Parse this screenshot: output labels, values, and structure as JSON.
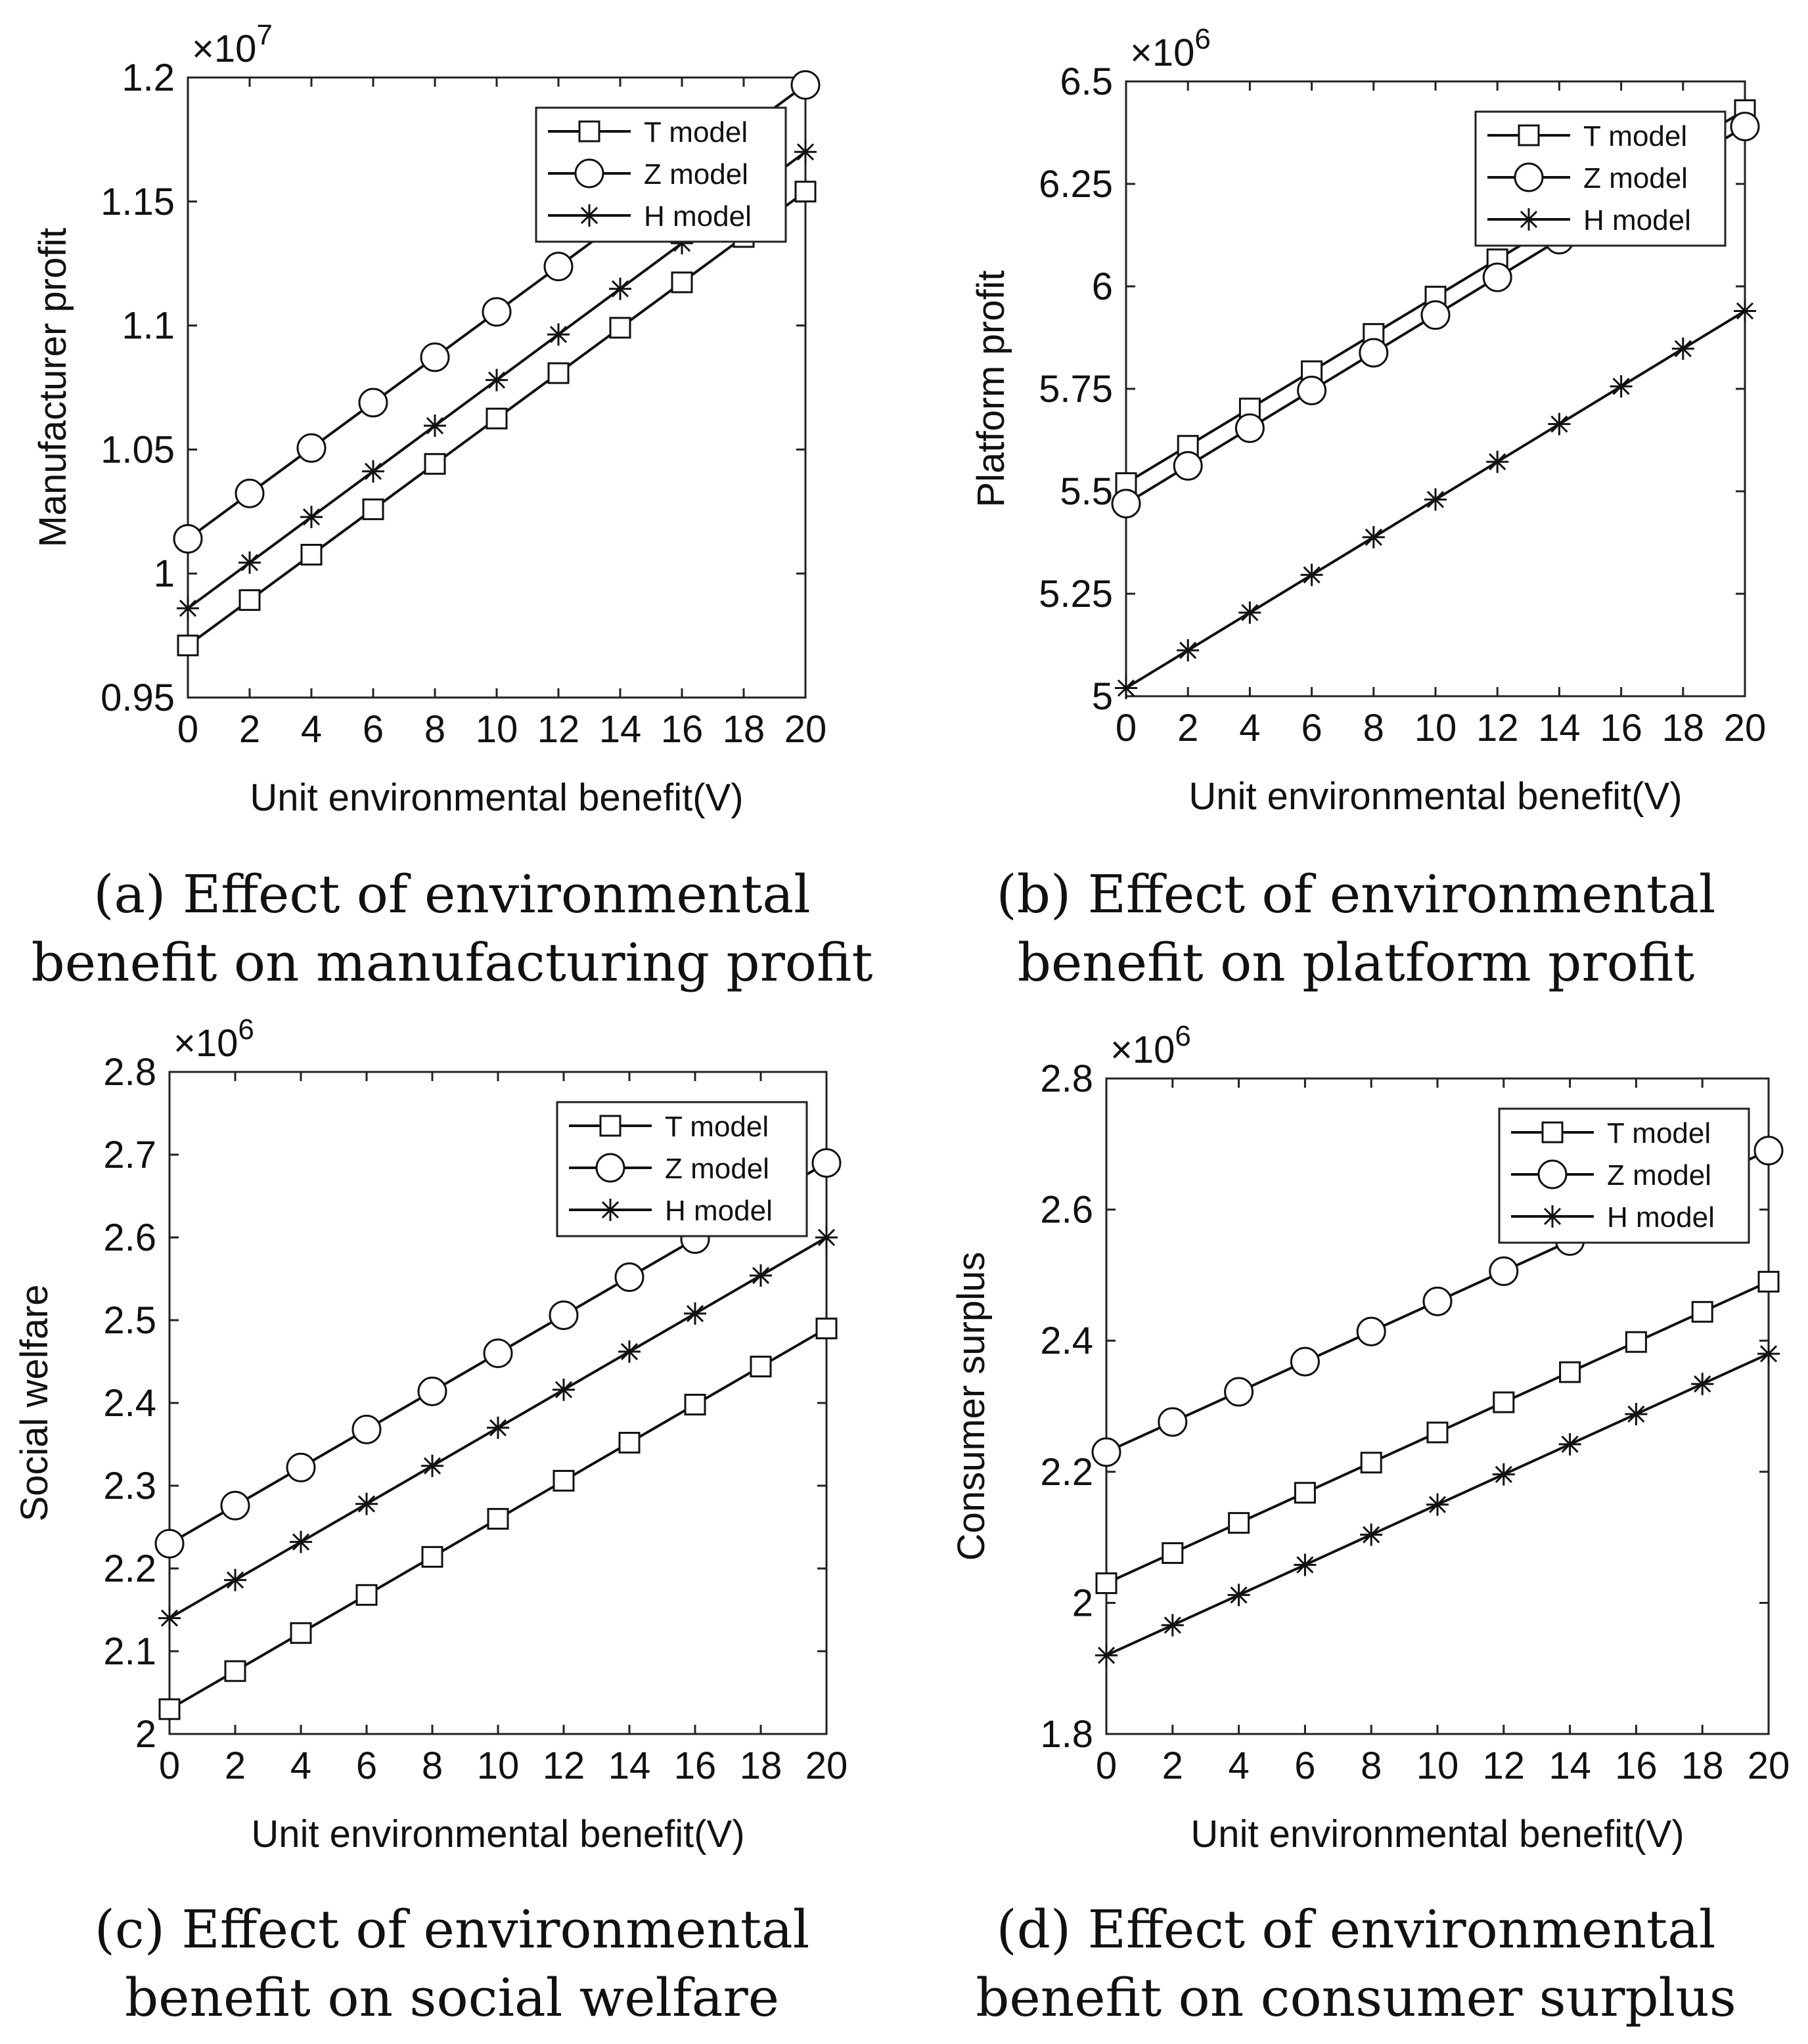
{
  "figure": {
    "captions": [
      {
        "line1": "(a) Effect of environmental",
        "line2": "benefit on manufacturing profit"
      },
      {
        "line1": "(b) Effect of environmental",
        "line2": "benefit on platform profit"
      },
      {
        "line1": "(c) Effect of environmental",
        "line2": "benefit on social welfare"
      },
      {
        "line1": "(d) Effect of environmental",
        "line2": "benefit on consumer surplus"
      }
    ]
  },
  "chart_data": [
    {
      "id": "a",
      "type": "line",
      "xlabel": "Unit environmental benefit(V)",
      "ylabel": "Manufacturer profit",
      "exponent": "×10^7",
      "exponent_base": "×10",
      "exponent_power": "7",
      "xlim": [
        0,
        20
      ],
      "ylim": [
        0.95,
        1.2
      ],
      "xticks": [
        0,
        2,
        4,
        6,
        8,
        10,
        12,
        14,
        16,
        18,
        20
      ],
      "yticks": [
        0.95,
        1,
        1.05,
        1.1,
        1.15,
        1.2
      ],
      "ytick_labels": [
        "0.95",
        "1",
        "1.05",
        "1.1",
        "1.15",
        "1.2"
      ],
      "legend": "top-right",
      "series": [
        {
          "name": "T model",
          "marker": "square",
          "x": [
            0,
            2,
            4,
            6,
            8,
            10,
            12,
            14,
            16,
            18,
            20
          ],
          "values": [
            0.971,
            0.9893,
            1.0076,
            1.0259,
            1.0442,
            1.0625,
            1.0808,
            1.0991,
            1.1174,
            1.1357,
            1.154
          ]
        },
        {
          "name": "Z model",
          "marker": "circle",
          "x": [
            0,
            2,
            4,
            6,
            8,
            10,
            12,
            14,
            16,
            18,
            20
          ],
          "values": [
            1.014,
            1.0323,
            1.0506,
            1.0689,
            1.0872,
            1.1055,
            1.1238,
            1.1421,
            1.1604,
            1.1787,
            1.197
          ]
        },
        {
          "name": "H model",
          "marker": "asterisk",
          "x": [
            0,
            2,
            4,
            6,
            8,
            10,
            12,
            14,
            16,
            18,
            20
          ],
          "values": [
            0.986,
            1.0044,
            1.0228,
            1.0412,
            1.0596,
            1.078,
            1.0964,
            1.1148,
            1.1332,
            1.1516,
            1.17
          ]
        }
      ]
    },
    {
      "id": "b",
      "type": "line",
      "xlabel": "Unit environmental benefit(V)",
      "ylabel": "Platform profit",
      "exponent": "×10^6",
      "exponent_base": "×10",
      "exponent_power": "6",
      "xlim": [
        0,
        20
      ],
      "ylim": [
        5,
        6.5
      ],
      "xticks": [
        0,
        2,
        4,
        6,
        8,
        10,
        12,
        14,
        16,
        18,
        20
      ],
      "yticks": [
        5,
        5.25,
        5.5,
        5.75,
        6,
        6.25,
        6.5
      ],
      "ytick_labels": [
        "5",
        "5.25",
        "5.5",
        "5.75",
        "6",
        "6.25",
        "6.5"
      ],
      "legend": "top-right",
      "series": [
        {
          "name": "T model",
          "marker": "square",
          "x": [
            0,
            2,
            4,
            6,
            8,
            10,
            12,
            14,
            16,
            18,
            20
          ],
          "values": [
            5.52,
            5.611,
            5.702,
            5.793,
            5.884,
            5.975,
            6.066,
            6.157,
            6.248,
            6.339,
            6.43
          ]
        },
        {
          "name": "Z model",
          "marker": "circle",
          "x": [
            0,
            2,
            4,
            6,
            8,
            10,
            12,
            14,
            16,
            18,
            20
          ],
          "values": [
            5.47,
            5.562,
            5.654,
            5.746,
            5.838,
            5.93,
            6.022,
            6.114,
            6.206,
            6.298,
            6.39
          ]
        },
        {
          "name": "H model",
          "marker": "asterisk",
          "x": [
            0,
            2,
            4,
            6,
            8,
            10,
            12,
            14,
            16,
            18,
            20
          ],
          "values": [
            5.02,
            5.112,
            5.204,
            5.296,
            5.388,
            5.48,
            5.572,
            5.664,
            5.756,
            5.848,
            5.94
          ]
        }
      ]
    },
    {
      "id": "c",
      "type": "line",
      "xlabel": "Unit environmental benefit(V)",
      "ylabel": "Social welfare",
      "exponent": "×10^6",
      "exponent_base": "×10",
      "exponent_power": "6",
      "xlim": [
        0,
        20
      ],
      "ylim": [
        2,
        2.8
      ],
      "xticks": [
        0,
        2,
        4,
        6,
        8,
        10,
        12,
        14,
        16,
        18,
        20
      ],
      "yticks": [
        2,
        2.1,
        2.2,
        2.3,
        2.4,
        2.5,
        2.6,
        2.7,
        2.8
      ],
      "ytick_labels": [
        "2",
        "2.1",
        "2.2",
        "2.3",
        "2.4",
        "2.5",
        "2.6",
        "2.7",
        "2.8"
      ],
      "legend": "top-right",
      "series": [
        {
          "name": "T model",
          "marker": "square",
          "x": [
            0,
            2,
            4,
            6,
            8,
            10,
            12,
            14,
            16,
            18,
            20
          ],
          "values": [
            2.03,
            2.076,
            2.122,
            2.168,
            2.214,
            2.26,
            2.306,
            2.352,
            2.398,
            2.444,
            2.49
          ]
        },
        {
          "name": "Z model",
          "marker": "circle",
          "x": [
            0,
            2,
            4,
            6,
            8,
            10,
            12,
            14,
            16,
            18,
            20
          ],
          "values": [
            2.23,
            2.276,
            2.322,
            2.368,
            2.414,
            2.46,
            2.506,
            2.552,
            2.598,
            2.644,
            2.69
          ]
        },
        {
          "name": "H model",
          "marker": "asterisk",
          "x": [
            0,
            2,
            4,
            6,
            8,
            10,
            12,
            14,
            16,
            18,
            20
          ],
          "values": [
            2.14,
            2.186,
            2.232,
            2.278,
            2.324,
            2.37,
            2.416,
            2.462,
            2.508,
            2.554,
            2.6
          ]
        }
      ]
    },
    {
      "id": "d",
      "type": "line",
      "xlabel": "Unit environmental benefit(V)",
      "ylabel": "Consumer surplus",
      "exponent": "×10^6",
      "exponent_base": "×10",
      "exponent_power": "6",
      "xlim": [
        0,
        20
      ],
      "ylim": [
        1.8,
        2.8
      ],
      "xticks": [
        0,
        2,
        4,
        6,
        8,
        10,
        12,
        14,
        16,
        18,
        20
      ],
      "yticks": [
        1.8,
        2,
        2.2,
        2.4,
        2.6,
        2.8
      ],
      "ytick_labels": [
        "1.8",
        "2",
        "2.2",
        "2.4",
        "2.6",
        "2.8"
      ],
      "legend": "top-right",
      "series": [
        {
          "name": "T model",
          "marker": "square",
          "x": [
            0,
            2,
            4,
            6,
            8,
            10,
            12,
            14,
            16,
            18,
            20
          ],
          "values": [
            2.03,
            2.076,
            2.122,
            2.168,
            2.214,
            2.26,
            2.306,
            2.352,
            2.398,
            2.444,
            2.49
          ]
        },
        {
          "name": "Z model",
          "marker": "circle",
          "x": [
            0,
            2,
            4,
            6,
            8,
            10,
            12,
            14,
            16,
            18,
            20
          ],
          "values": [
            2.23,
            2.276,
            2.322,
            2.368,
            2.414,
            2.46,
            2.506,
            2.552,
            2.598,
            2.644,
            2.69
          ]
        },
        {
          "name": "H model",
          "marker": "asterisk",
          "x": [
            0,
            2,
            4,
            6,
            8,
            10,
            12,
            14,
            16,
            18,
            20
          ],
          "values": [
            1.92,
            1.966,
            2.012,
            2.058,
            2.104,
            2.15,
            2.196,
            2.242,
            2.288,
            2.334,
            2.38
          ]
        }
      ]
    }
  ]
}
